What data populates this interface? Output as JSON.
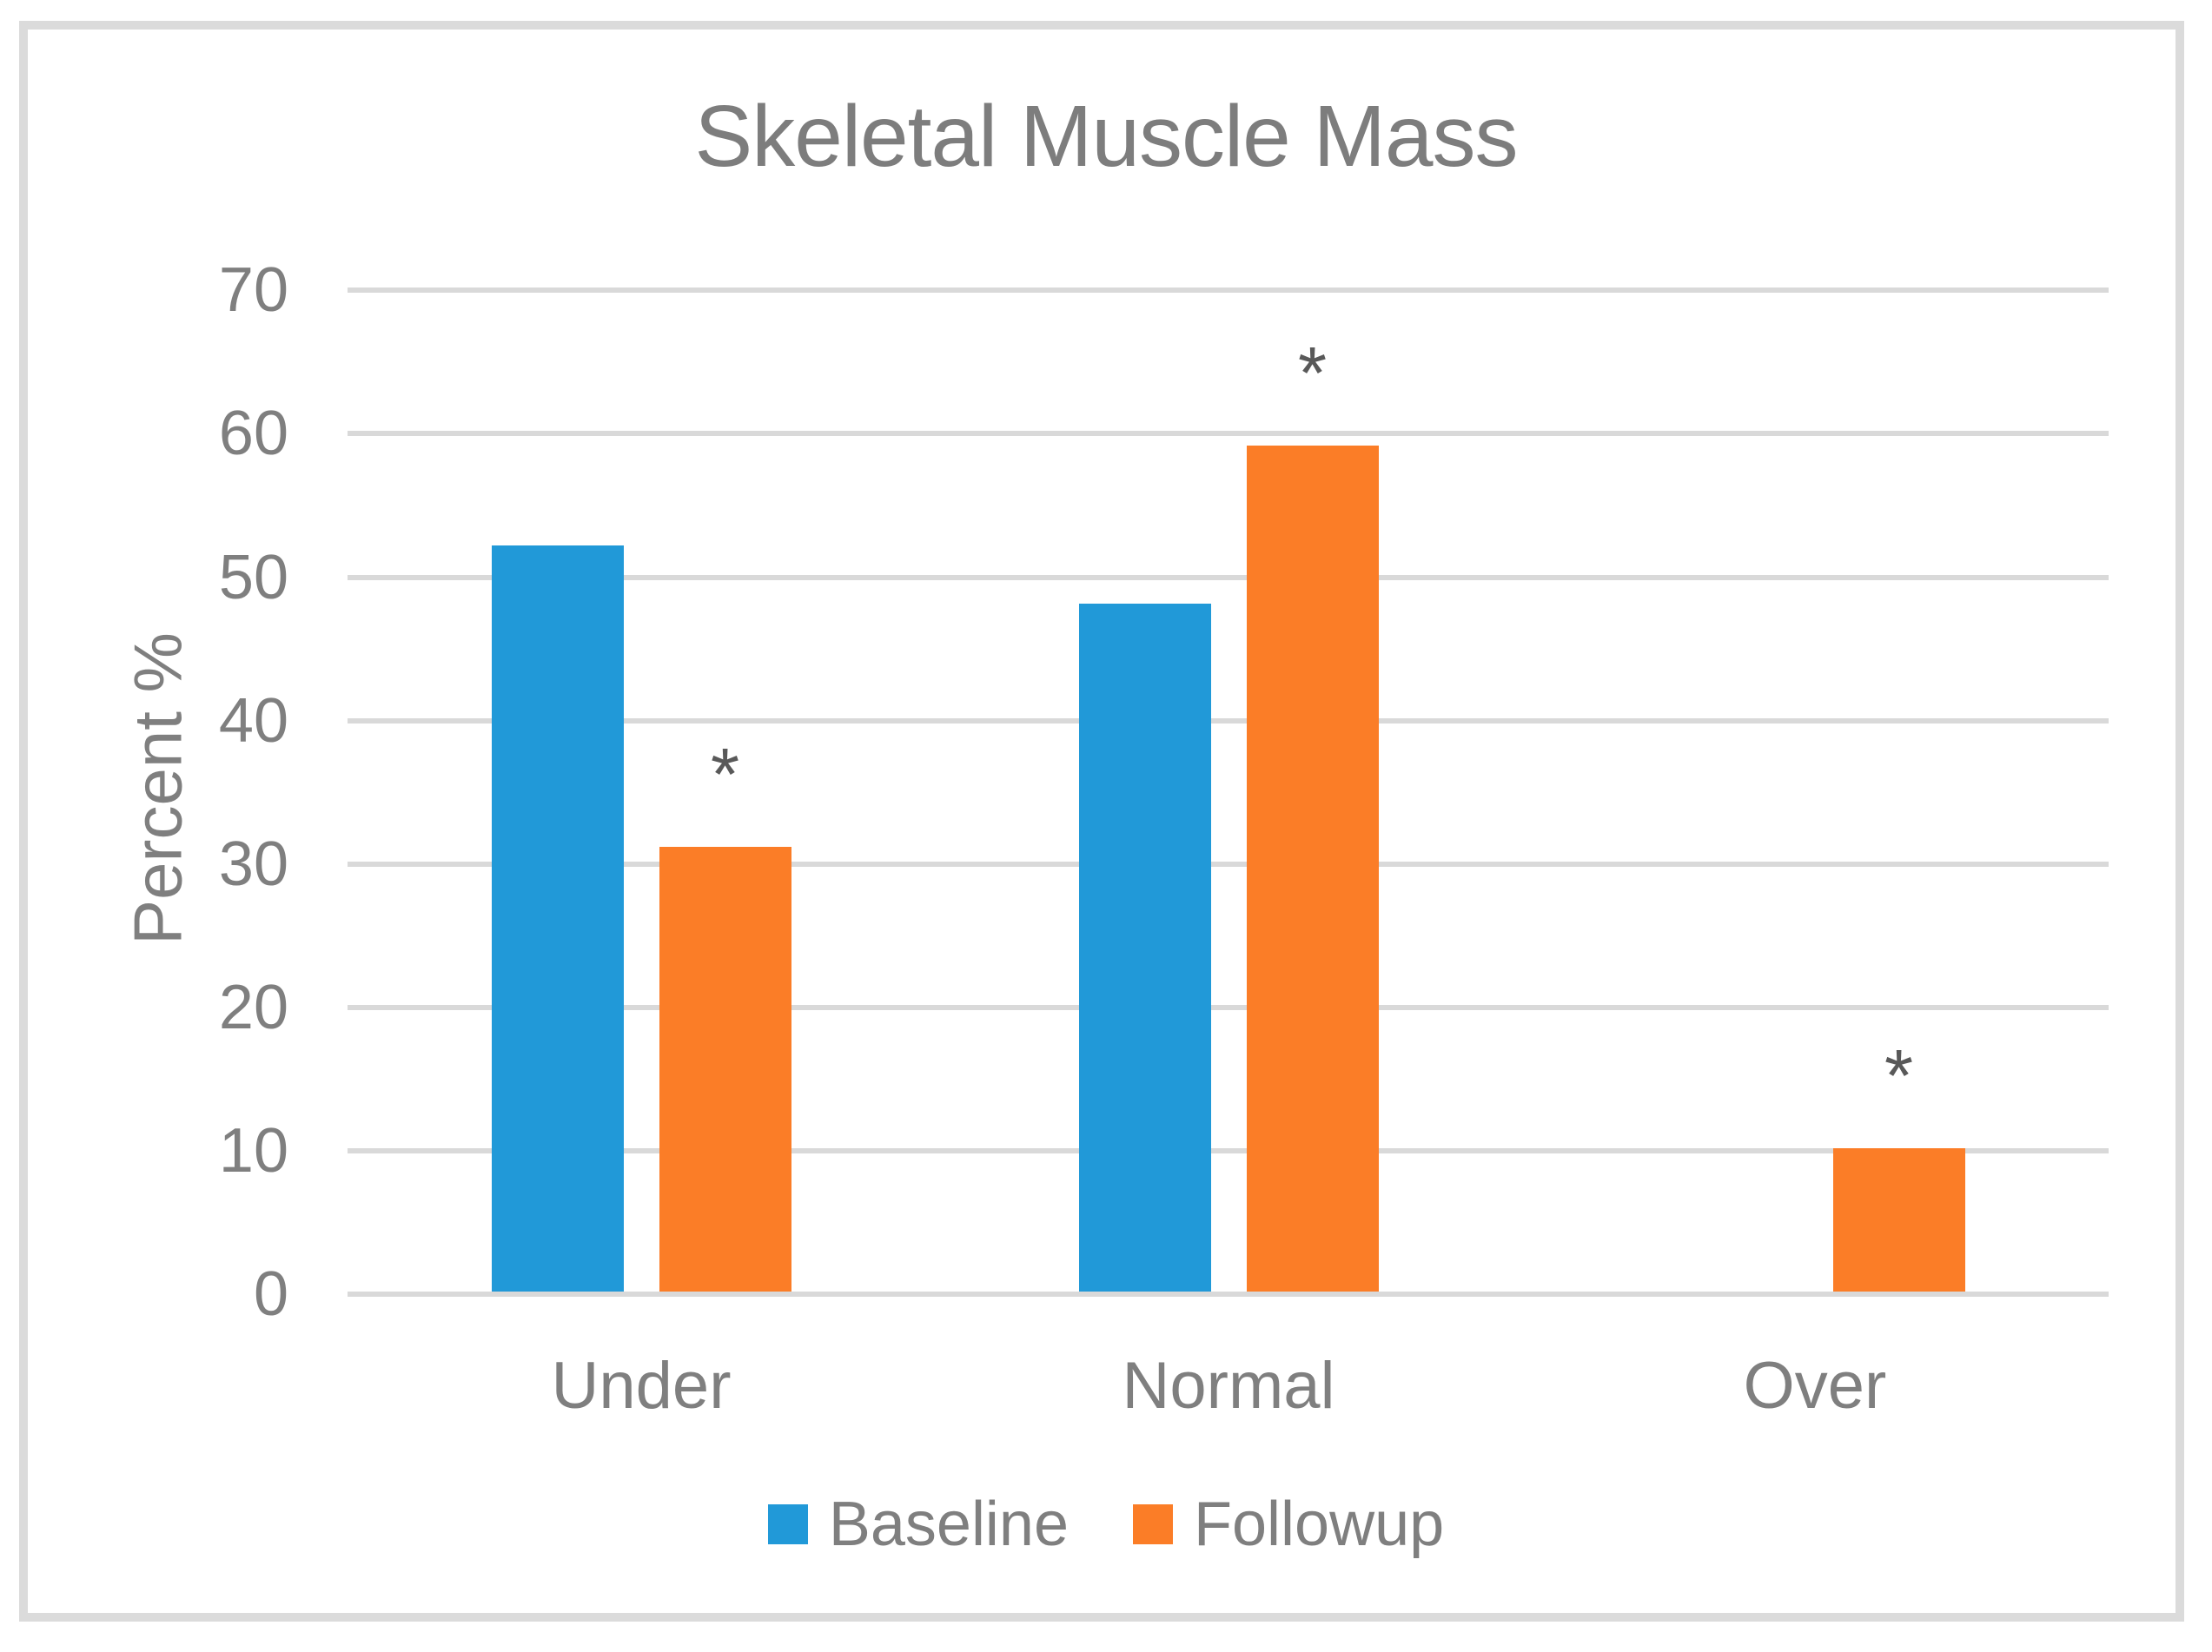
{
  "chart_data": {
    "type": "bar",
    "title": "Skeletal Muscle Mass",
    "ylabel": "Percent %",
    "categories": [
      "Under",
      "Normal",
      "Over"
    ],
    "series": [
      {
        "name": "Baseline",
        "color": "#2199d8",
        "values": [
          52,
          48,
          0
        ]
      },
      {
        "name": "Followup",
        "color": "#fb7d27",
        "values": [
          31,
          59,
          10
        ]
      }
    ],
    "significance_markers": {
      "symbol": "*",
      "on_series": "Followup",
      "categories_marked": [
        "Under",
        "Normal",
        "Over"
      ]
    },
    "ylim": [
      0,
      70
    ],
    "yticks": [
      0,
      10,
      20,
      30,
      40,
      50,
      60,
      70
    ],
    "grid": true,
    "legend_position": "bottom"
  },
  "colors": {
    "background": "#ffffff",
    "frame_border": "#dbdbdb",
    "gridline": "#d9d9d9",
    "axis_line": "#d9d9d9",
    "title_text": "#7d7d7d",
    "axis_text": "#7f7f7f",
    "annotation_text": "#595959"
  }
}
